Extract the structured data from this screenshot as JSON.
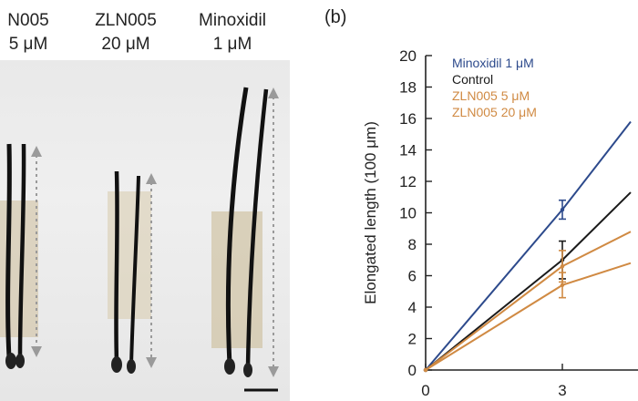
{
  "photo": {
    "columns": [
      {
        "name_line1": "N005",
        "name_line2": "5 μM"
      },
      {
        "name_line1": "ZLN005",
        "name_line2": "20 μM"
      },
      {
        "name_line1": "Minoxidil",
        "name_line2": "1 μM"
      }
    ]
  },
  "panel_b": {
    "letter": "(b)"
  },
  "chart_data": {
    "type": "line",
    "ylabel": "Elongated length (100 μm)",
    "xlabel": "",
    "ylim": [
      0,
      20
    ],
    "yticks": [
      0,
      2,
      4,
      6,
      8,
      10,
      12,
      14,
      16,
      18,
      20
    ],
    "xticks": [
      0,
      3
    ],
    "xlim_visible": [
      0,
      4.4
    ],
    "legend_position": "top-left",
    "series": [
      {
        "name": "Minoxidil 1 μM",
        "color": "#2d4a8c",
        "x": [
          0,
          3,
          4.5
        ],
        "y": [
          0,
          10.2,
          15.8
        ],
        "err": [
          0,
          0.6,
          0
        ]
      },
      {
        "name": "Control",
        "color": "#1a1a1a",
        "x": [
          0,
          3,
          4.5
        ],
        "y": [
          0,
          7.0,
          11.3
        ],
        "err": [
          0,
          1.2,
          0
        ]
      },
      {
        "name": "ZLN005 5 μM",
        "color": "#d08a43",
        "x": [
          0,
          3,
          4.5
        ],
        "y": [
          0,
          6.6,
          8.8
        ],
        "err": [
          0,
          1.0,
          0
        ]
      },
      {
        "name": "ZLN005 20 μM",
        "color": "#d08a43",
        "x": [
          0,
          3,
          4.5
        ],
        "y": [
          0,
          5.4,
          6.8
        ],
        "err": [
          0,
          0.8,
          0
        ]
      }
    ]
  }
}
